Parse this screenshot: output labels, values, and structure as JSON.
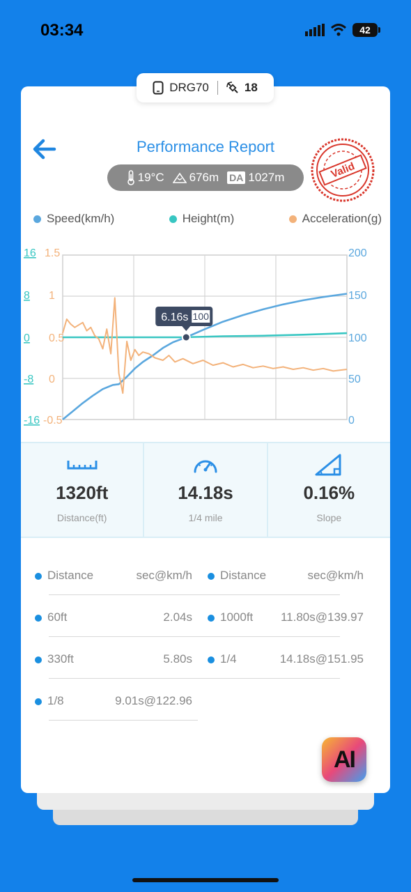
{
  "status": {
    "time": "03:34",
    "battery": "42"
  },
  "device": {
    "name": "DRG70",
    "satellites": "18"
  },
  "header": {
    "title": "Performance Report",
    "stamp_text": "Valid"
  },
  "weather": {
    "temperature": "19°C",
    "altitude": "676m",
    "da_label": "DA",
    "density_altitude": "1027m"
  },
  "legend": [
    {
      "label": "Speed(km/h)",
      "color": "#5aa7de"
    },
    {
      "label": "Height(m)",
      "color": "#38c6c2"
    },
    {
      "label": "Acceleration(g)",
      "color": "#f3b27a"
    }
  ],
  "chart_data": {
    "type": "line",
    "left_axis_height": {
      "ticks": [
        "16",
        "8",
        "0",
        "-8",
        "-16"
      ],
      "ylim": [
        -16,
        16
      ],
      "color": "#38c6c2"
    },
    "left_axis_acceleration": {
      "ticks": [
        "1.5",
        "1",
        "0.5",
        "0",
        "-0.5"
      ],
      "ylim": [
        -0.5,
        1.5
      ],
      "color": "#f3b27a"
    },
    "right_axis_speed": {
      "ticks": [
        "200",
        "150",
        "100",
        "50",
        "0"
      ],
      "ylim": [
        0,
        200
      ],
      "color": "#5aa7de"
    },
    "xlim": [
      0,
      14.18
    ],
    "grid": true,
    "series": [
      {
        "name": "Speed(km/h)",
        "axis": "speed",
        "color": "#5aa7de",
        "x": [
          0,
          0.5,
          1,
          1.5,
          2,
          2.5,
          2.8,
          3.2,
          3.6,
          4,
          4.5,
          5,
          5.5,
          6.16,
          7,
          8,
          9,
          10,
          11,
          12,
          13,
          14.18
        ],
        "values": [
          0,
          10,
          20,
          29,
          37,
          42,
          43,
          52,
          62,
          70,
          78,
          87,
          94,
          100,
          109,
          119,
          127,
          134,
          140,
          145,
          149,
          153
        ]
      },
      {
        "name": "Height(m)",
        "axis": "height",
        "color": "#38c6c2",
        "x": [
          0,
          2,
          4,
          6,
          8,
          10,
          12,
          14.18
        ],
        "values": [
          0,
          0,
          0,
          0,
          0.2,
          0.3,
          0.5,
          0.8
        ]
      },
      {
        "name": "Acceleration(g)",
        "axis": "acceleration",
        "color": "#f3b27a",
        "x": [
          0,
          0.2,
          0.4,
          0.6,
          0.8,
          1,
          1.2,
          1.4,
          1.6,
          1.8,
          2,
          2.2,
          2.4,
          2.6,
          2.8,
          3,
          3.2,
          3.4,
          3.6,
          3.8,
          4,
          4.3,
          4.6,
          5,
          5.3,
          5.6,
          6,
          6.5,
          7,
          7.5,
          8,
          8.5,
          9,
          9.5,
          10,
          10.5,
          11,
          11.5,
          12,
          12.5,
          13,
          13.5,
          14.18
        ],
        "values": [
          0.55,
          0.72,
          0.66,
          0.62,
          0.65,
          0.68,
          0.58,
          0.62,
          0.52,
          0.48,
          0.36,
          0.6,
          0.3,
          0.98,
          0.06,
          -0.18,
          0.45,
          0.22,
          0.35,
          0.28,
          0.32,
          0.3,
          0.25,
          0.22,
          0.28,
          0.2,
          0.24,
          0.18,
          0.22,
          0.16,
          0.19,
          0.14,
          0.17,
          0.13,
          0.15,
          0.12,
          0.14,
          0.11,
          0.13,
          0.1,
          0.12,
          0.09,
          0.11
        ]
      }
    ],
    "marker": {
      "label": "6.16s",
      "speed_badge": "100",
      "x": 6.16,
      "speed": 100
    }
  },
  "stats": [
    {
      "value": "1320ft",
      "label": "Distance(ft)",
      "icon": "ruler-icon"
    },
    {
      "value": "14.18s",
      "label": "1/4 mile",
      "icon": "speedometer-icon"
    },
    {
      "value": "0.16%",
      "label": "Slope",
      "icon": "slope-icon"
    }
  ],
  "splits": {
    "header_left": {
      "key": "Distance",
      "value": "sec@km/h"
    },
    "header_right": {
      "key": "Distance",
      "value": "sec@km/h"
    },
    "left": [
      {
        "key": "60ft",
        "value": "2.04s"
      },
      {
        "key": "330ft",
        "value": "5.80s"
      },
      {
        "key": "1/8",
        "value": "9.01s@122.96"
      }
    ],
    "right": [
      {
        "key": "1000ft",
        "value": "11.80s@139.97"
      },
      {
        "key": "1/4",
        "value": "14.18s@151.95"
      }
    ]
  },
  "ai_badge": {
    "text": "AI"
  }
}
